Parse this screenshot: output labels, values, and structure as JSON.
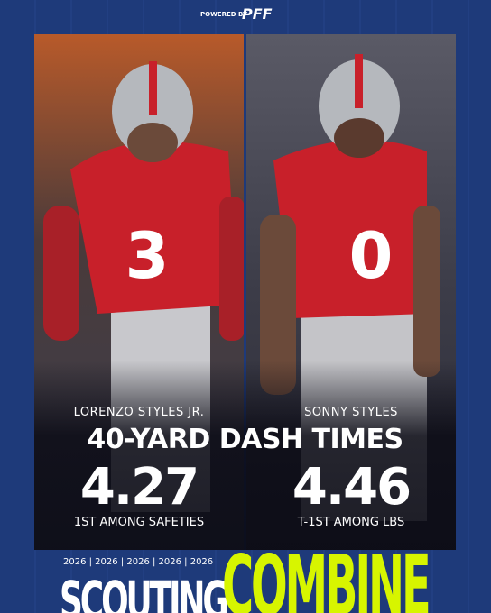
{
  "header": {
    "powered_by": "POWERED BY",
    "brand": "PFF"
  },
  "players": [
    {
      "name": "LORENZO STYLES JR.",
      "jersey": "3",
      "time": "4.27",
      "rank": "1ST AMONG SAFETIES"
    },
    {
      "name": "SONNY STYLES",
      "jersey": "0",
      "time": "4.46",
      "rank": "T-1ST AMONG LBS"
    }
  ],
  "headline": "40-YARD DASH TIMES",
  "footer": {
    "years": "2026 | 2026 | 2026 | 2026 | 2026",
    "word1": "SCOUTING",
    "word2": "COMBINE"
  }
}
